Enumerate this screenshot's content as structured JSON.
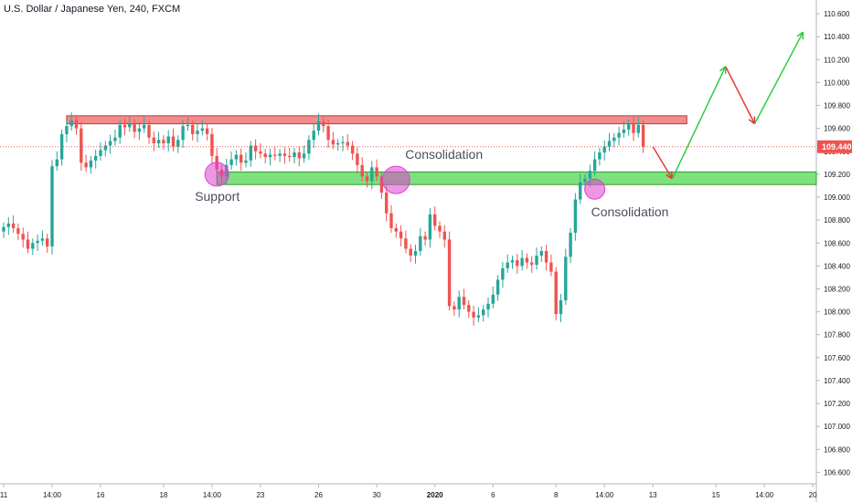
{
  "header": {
    "symbol_title": "U.S. Dollar / Japanese Yen, 240, FXCM"
  },
  "colors": {
    "up": "#26a69a",
    "down": "#ef5350",
    "resistance_fill": "#f28b8b",
    "resistance_edge": "#c0392b",
    "support_fill": "#7fe07f",
    "support_edge": "#2e9e2e",
    "circle": "#e040d0",
    "projection_up": "#2ecc40",
    "projection_down": "#e53935",
    "price_line": "#ef5350",
    "price_badge": "#ef5350"
  },
  "chart_data": {
    "type": "candlestick",
    "title": "U.S. Dollar / Japanese Yen, 240, FXCM",
    "ylim": [
      106.5,
      110.72
    ],
    "yticks": [
      106.6,
      106.8,
      107.0,
      107.2,
      107.4,
      107.6,
      107.8,
      108.0,
      108.2,
      108.4,
      108.6,
      108.8,
      109.0,
      109.2,
      109.4,
      109.6,
      109.8,
      110.0,
      110.2,
      110.4,
      110.6
    ],
    "xticks": [
      {
        "label": "11",
        "i": 0
      },
      {
        "label": "14:00",
        "i": 10
      },
      {
        "label": "16",
        "i": 20
      },
      {
        "label": "18",
        "i": 33
      },
      {
        "label": "14:00",
        "i": 43
      },
      {
        "label": "23",
        "i": 53
      },
      {
        "label": "26",
        "i": 65
      },
      {
        "label": "30",
        "i": 77
      },
      {
        "label": "2020",
        "i": 89
      },
      {
        "label": "6",
        "i": 101
      },
      {
        "label": "8",
        "i": 114
      },
      {
        "label": "14:00",
        "i": 124
      },
      {
        "label": "13",
        "i": 134
      },
      {
        "label": "15",
        "i": 147
      },
      {
        "label": "14:00",
        "i": 157
      },
      {
        "label": "20",
        "i": 167
      }
    ],
    "current_price": 109.44,
    "current_price_label": "109.440",
    "resistance_zone": [
      109.64,
      109.71
    ],
    "support_zone": [
      109.11,
      109.22
    ],
    "closes": [
      108.74,
      108.77,
      108.73,
      108.68,
      108.63,
      108.55,
      108.6,
      108.62,
      108.64,
      108.57,
      109.27,
      109.33,
      109.55,
      109.62,
      109.67,
      109.6,
      109.3,
      109.26,
      109.32,
      109.36,
      109.41,
      109.45,
      109.49,
      109.52,
      109.63,
      109.61,
      109.64,
      109.57,
      109.6,
      109.63,
      109.52,
      109.47,
      109.5,
      109.47,
      109.53,
      109.44,
      109.5,
      109.62,
      109.63,
      109.55,
      109.58,
      109.6,
      109.55,
      109.36,
      109.24,
      109.18,
      109.28,
      109.33,
      109.37,
      109.3,
      109.32,
      109.45,
      109.4,
      109.38,
      109.35,
      109.37,
      109.36,
      109.38,
      109.36,
      109.35,
      109.39,
      109.34,
      109.38,
      109.5,
      109.58,
      109.66,
      109.62,
      109.5,
      109.46,
      109.47,
      109.48,
      109.45,
      109.38,
      109.28,
      109.18,
      109.14,
      109.26,
      109.18,
      109.04,
      108.86,
      108.73,
      108.7,
      108.64,
      108.55,
      108.49,
      108.53,
      108.66,
      108.63,
      108.85,
      108.75,
      108.7,
      108.63,
      108.05,
      108.02,
      108.13,
      108.06,
      108.0,
      107.95,
      107.97,
      108.02,
      108.07,
      108.15,
      108.28,
      108.38,
      108.43,
      108.45,
      108.4,
      108.47,
      108.43,
      108.41,
      108.49,
      108.53,
      108.43,
      108.35,
      107.98,
      108.1,
      108.48,
      108.69,
      108.98,
      109.13,
      109.16,
      109.23,
      109.33,
      109.39,
      109.44,
      109.49,
      109.52,
      109.56,
      109.59,
      109.64,
      109.56,
      109.63,
      109.44
    ],
    "annotations": [
      {
        "text": "Support",
        "i": 44,
        "price": 109.2
      },
      {
        "text": "Consolidation",
        "i": 81,
        "price": 109.15
      },
      {
        "text": "Consolidation",
        "i": 122,
        "price": 109.07
      }
    ],
    "projection": [
      {
        "i": 134,
        "price": 109.44
      },
      {
        "i": 138,
        "price": 109.16
      },
      {
        "i": 149,
        "price": 110.14
      },
      {
        "i": 155,
        "price": 109.64
      },
      {
        "i": 165,
        "price": 110.44
      }
    ]
  },
  "ui": {
    "label_support": "Support",
    "label_consolidation_1": "Consolidation",
    "label_consolidation_2": "Consolidation"
  }
}
